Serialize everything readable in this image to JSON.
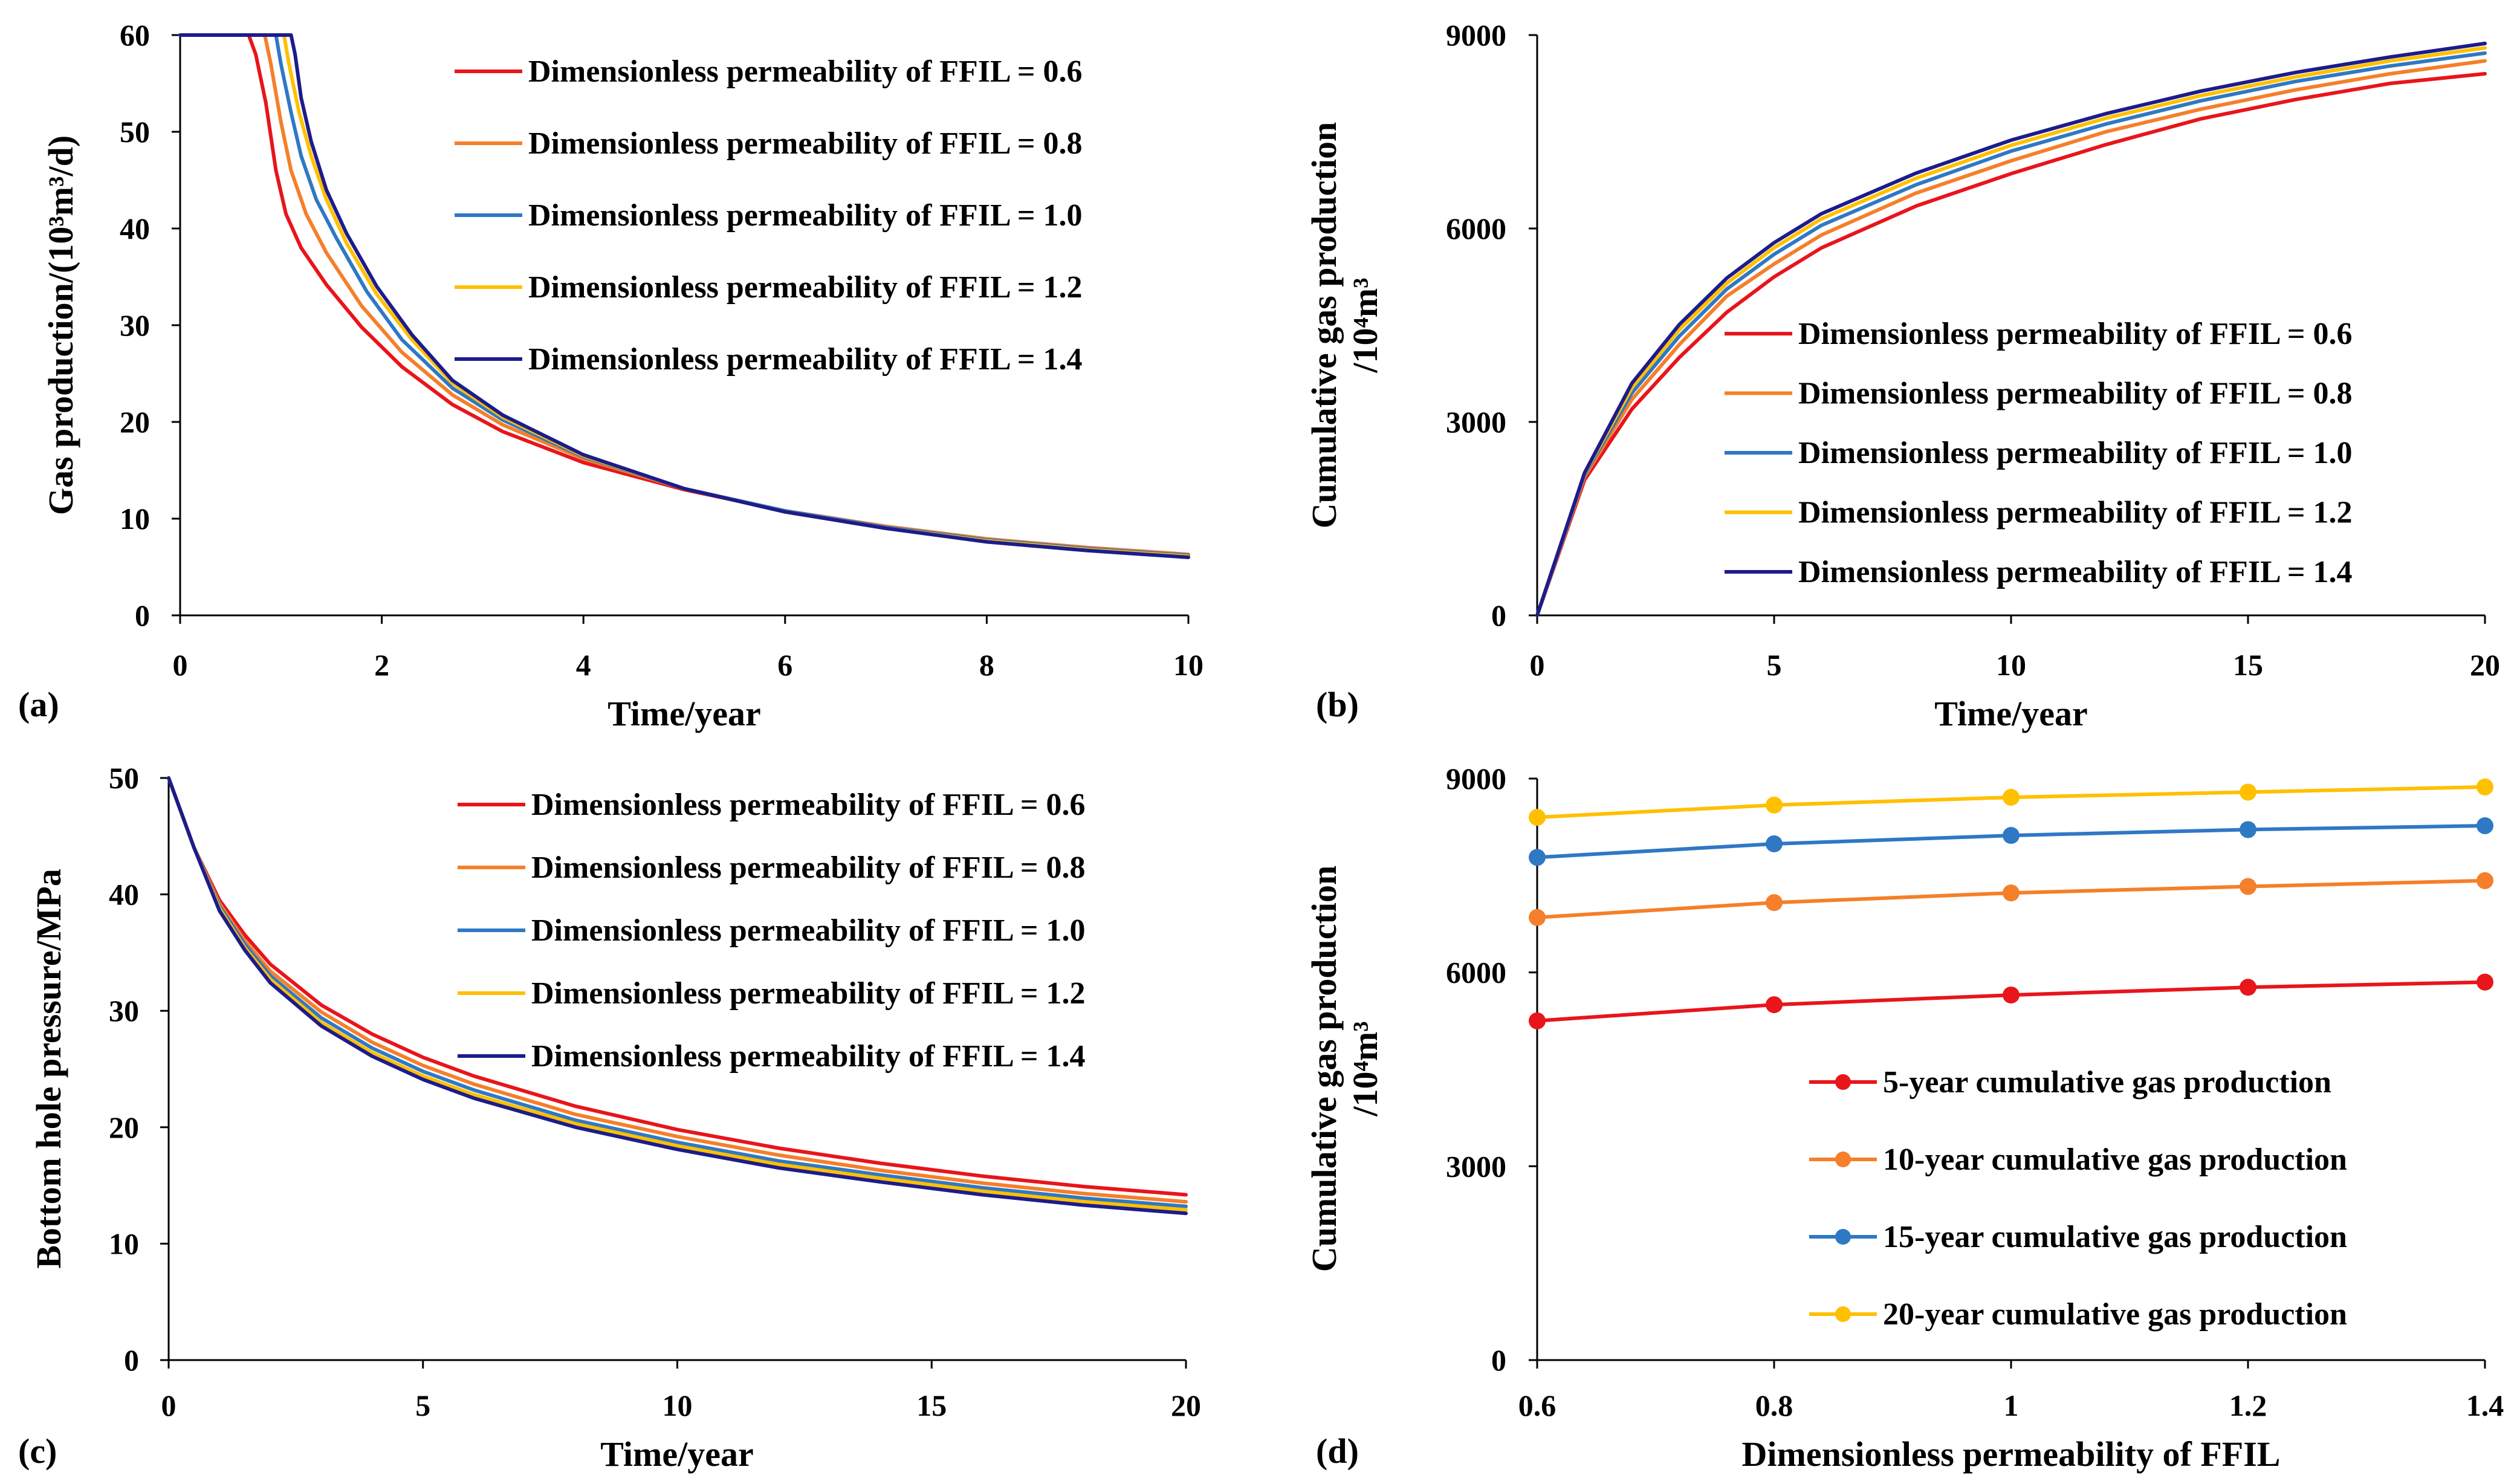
{
  "chart_data": [
    {
      "panel": "(a)",
      "type": "line",
      "xlabel": "Time/year",
      "ylabel": "Gas production/(10³m³/d)",
      "xlim": [
        0,
        10
      ],
      "ylim": [
        0,
        60
      ],
      "xticks": [
        0,
        2,
        4,
        6,
        8,
        10
      ],
      "yticks": [
        0,
        10,
        20,
        30,
        40,
        50,
        60
      ],
      "legend_position": "top-right",
      "series": [
        {
          "name": "Dimensionless permeability of FFIL = 0.6",
          "color": "#e8151b",
          "x": [
            0,
            0.68,
            0.75,
            0.85,
            0.95,
            1.05,
            1.2,
            1.45,
            1.8,
            2.2,
            2.7,
            3.2,
            4,
            5,
            6,
            7,
            8,
            9,
            10
          ],
          "y": [
            60,
            60,
            58,
            53,
            46,
            41.5,
            38,
            34.2,
            29.8,
            25.7,
            21.8,
            19,
            15.8,
            13,
            10.8,
            9.2,
            7.9,
            7,
            6.3
          ]
        },
        {
          "name": "Dimensionless permeability of FFIL = 0.8",
          "color": "#f57f2a",
          "x": [
            0,
            0.84,
            0.9,
            1.0,
            1.1,
            1.25,
            1.45,
            1.8,
            2.2,
            2.7,
            3.2,
            4,
            5,
            6,
            7,
            8,
            9,
            10
          ],
          "y": [
            60,
            60,
            57,
            51,
            46,
            41.5,
            37.5,
            32,
            27.2,
            22.8,
            19.7,
            16.2,
            13.1,
            10.8,
            9.2,
            7.9,
            7,
            6.3
          ]
        },
        {
          "name": "Dimensionless permeability of FFIL = 1.0",
          "color": "#2f78c4",
          "x": [
            0,
            0.95,
            1.0,
            1.1,
            1.2,
            1.35,
            1.55,
            1.85,
            2.2,
            2.7,
            3.2,
            4,
            5,
            6,
            7,
            8,
            9,
            10
          ],
          "y": [
            60,
            60,
            57,
            52,
            47.5,
            43,
            39,
            33.5,
            28.5,
            23.5,
            20.2,
            16.4,
            13.1,
            10.8,
            9.1,
            7.8,
            6.9,
            6.2
          ]
        },
        {
          "name": "Dimensionless permeability of FFIL = 1.2",
          "color": "#ffc000",
          "x": [
            0,
            1.03,
            1.08,
            1.18,
            1.3,
            1.45,
            1.65,
            1.95,
            2.3,
            2.7,
            3.2,
            4,
            5,
            6,
            7,
            8,
            9,
            10
          ],
          "y": [
            60,
            60,
            57,
            52,
            47.5,
            43,
            38.5,
            33.2,
            28.5,
            24,
            20.5,
            16.5,
            13.1,
            10.7,
            9,
            7.7,
            6.8,
            6.1
          ]
        },
        {
          "name": "Dimensionless permeability of FFIL = 1.4",
          "color": "#1c1c8c",
          "x": [
            0,
            1.1,
            1.14,
            1.2,
            1.3,
            1.45,
            1.65,
            1.95,
            2.3,
            2.7,
            3.2,
            4,
            5,
            6,
            7,
            8,
            9,
            10
          ],
          "y": [
            60,
            60,
            58,
            53.5,
            49,
            44,
            39.5,
            34,
            29,
            24.3,
            20.7,
            16.6,
            13.1,
            10.7,
            9,
            7.6,
            6.7,
            6
          ]
        }
      ]
    },
    {
      "panel": "(b)",
      "type": "line",
      "xlabel": "Time/year",
      "ylabel": "Cumulative gas production",
      "ylabel2": "/10⁴m³",
      "xlim": [
        0,
        20
      ],
      "ylim": [
        0,
        9000
      ],
      "xticks": [
        0,
        5,
        10,
        15,
        20
      ],
      "yticks": [
        0,
        3000,
        6000,
        9000
      ],
      "legend_position": "lower-right",
      "series": [
        {
          "name": "Dimensionless permeability of FFIL = 0.6",
          "color": "#e8151b",
          "x": [
            0,
            1,
            2,
            3,
            4,
            5,
            6,
            8,
            10,
            12,
            14,
            16,
            18,
            20
          ],
          "y": [
            0,
            2100,
            3200,
            4000,
            4700,
            5250,
            5700,
            6350,
            6850,
            7300,
            7700,
            8000,
            8250,
            8400
          ]
        },
        {
          "name": "Dimensionless permeability of FFIL = 0.8",
          "color": "#f57f2a",
          "x": [
            0,
            1,
            2,
            3,
            4,
            5,
            6,
            8,
            10,
            12,
            14,
            16,
            18,
            20
          ],
          "y": [
            0,
            2150,
            3350,
            4200,
            4950,
            5450,
            5900,
            6550,
            7050,
            7500,
            7850,
            8150,
            8400,
            8600
          ]
        },
        {
          "name": "Dimensionless permeability of FFIL = 1.0",
          "color": "#2f78c4",
          "x": [
            0,
            1,
            2,
            3,
            4,
            5,
            6,
            8,
            10,
            12,
            14,
            16,
            18,
            20
          ],
          "y": [
            0,
            2180,
            3450,
            4330,
            5060,
            5600,
            6050,
            6680,
            7200,
            7620,
            7980,
            8280,
            8520,
            8720
          ]
        },
        {
          "name": "Dimensionless permeability of FFIL = 1.2",
          "color": "#ffc000",
          "x": [
            0,
            1,
            2,
            3,
            4,
            5,
            6,
            8,
            10,
            12,
            14,
            16,
            18,
            20
          ],
          "y": [
            0,
            2200,
            3530,
            4430,
            5150,
            5700,
            6150,
            6780,
            7290,
            7710,
            8060,
            8350,
            8600,
            8800
          ]
        },
        {
          "name": "Dimensionless permeability of FFIL = 1.4",
          "color": "#1c1c8c",
          "x": [
            0,
            1,
            2,
            3,
            4,
            5,
            6,
            8,
            10,
            12,
            14,
            16,
            18,
            20
          ],
          "y": [
            0,
            2210,
            3600,
            4510,
            5230,
            5780,
            6230,
            6860,
            7370,
            7780,
            8130,
            8420,
            8660,
            8870
          ]
        }
      ]
    },
    {
      "panel": "(c)",
      "type": "line",
      "xlabel": "Time/year",
      "ylabel": "Bottom hole pressure/MPa",
      "xlim": [
        0,
        20
      ],
      "ylim": [
        0,
        50
      ],
      "xticks": [
        0,
        5,
        10,
        15,
        20
      ],
      "yticks": [
        0,
        10,
        20,
        30,
        40,
        50
      ],
      "legend_position": "top-right",
      "series": [
        {
          "name": "Dimensionless permeability of FFIL = 0.6",
          "color": "#e8151b",
          "x": [
            0,
            0.5,
            1,
            1.5,
            2,
            3,
            4,
            5,
            6,
            8,
            10,
            12,
            14,
            16,
            18,
            20
          ],
          "y": [
            50,
            44,
            39.5,
            36.5,
            34,
            30.5,
            28,
            26,
            24.4,
            21.8,
            19.8,
            18.2,
            16.9,
            15.8,
            14.9,
            14.2
          ]
        },
        {
          "name": "Dimensionless permeability of FFIL = 0.8",
          "color": "#f57f2a",
          "x": [
            0,
            0.5,
            1,
            1.5,
            2,
            3,
            4,
            5,
            6,
            8,
            10,
            12,
            14,
            16,
            18,
            20
          ],
          "y": [
            50,
            44,
            39.2,
            36,
            33.4,
            29.9,
            27.3,
            25.3,
            23.7,
            21.1,
            19.2,
            17.6,
            16.3,
            15.2,
            14.3,
            13.6
          ]
        },
        {
          "name": "Dimensionless permeability of FFIL = 1.0",
          "color": "#2f78c4",
          "x": [
            0,
            0.5,
            1,
            1.5,
            2,
            3,
            4,
            5,
            6,
            8,
            10,
            12,
            14,
            16,
            18,
            20
          ],
          "y": [
            50,
            44,
            39,
            35.7,
            33,
            29.4,
            26.8,
            24.8,
            23.2,
            20.6,
            18.7,
            17.1,
            15.9,
            14.8,
            13.9,
            13.2
          ]
        },
        {
          "name": "Dimensionless permeability of FFIL = 1.2",
          "color": "#ffc000",
          "x": [
            0,
            0.5,
            1,
            1.5,
            2,
            3,
            4,
            5,
            6,
            8,
            10,
            12,
            14,
            16,
            18,
            20
          ],
          "y": [
            50,
            44,
            38.8,
            35.4,
            32.7,
            29,
            26.4,
            24.4,
            22.8,
            20.3,
            18.4,
            16.8,
            15.6,
            14.5,
            13.6,
            12.9
          ]
        },
        {
          "name": "Dimensionless permeability of FFIL = 1.4",
          "color": "#1c1c8c",
          "x": [
            0,
            0.5,
            1,
            1.5,
            2,
            3,
            4,
            5,
            6,
            8,
            10,
            12,
            14,
            16,
            18,
            20
          ],
          "y": [
            50,
            44,
            38.6,
            35.2,
            32.4,
            28.7,
            26.1,
            24.1,
            22.5,
            20,
            18.1,
            16.5,
            15.3,
            14.2,
            13.3,
            12.6
          ]
        }
      ]
    },
    {
      "panel": "(d)",
      "type": "line",
      "markers": true,
      "xlabel": "Dimensionless permeability of FFIL",
      "ylabel": "Cumulative gas production",
      "ylabel2": "/10⁴m³",
      "xlim": [
        0.6,
        1.4
      ],
      "ylim": [
        0,
        9000
      ],
      "xticks": [
        0.6,
        0.8,
        1,
        1.2,
        1.4
      ],
      "yticks": [
        0,
        3000,
        6000,
        9000
      ],
      "legend_position": "lower-right",
      "series": [
        {
          "name": "5-year cumulative gas production",
          "color": "#e8151b",
          "x": [
            0.6,
            0.8,
            1,
            1.2,
            1.4
          ],
          "y": [
            5250,
            5500,
            5650,
            5770,
            5850
          ]
        },
        {
          "name": "10-year cumulative gas production",
          "color": "#f57f2a",
          "x": [
            0.6,
            0.8,
            1,
            1.2,
            1.4
          ],
          "y": [
            6850,
            7080,
            7230,
            7330,
            7420
          ]
        },
        {
          "name": "15-year cumulative gas production",
          "color": "#2f78c4",
          "x": [
            0.6,
            0.8,
            1,
            1.2,
            1.4
          ],
          "y": [
            7780,
            7990,
            8120,
            8210,
            8270
          ]
        },
        {
          "name": "20-year cumulative gas production",
          "color": "#ffc000",
          "x": [
            0.6,
            0.8,
            1,
            1.2,
            1.4
          ],
          "y": [
            8400,
            8590,
            8710,
            8790,
            8870
          ]
        }
      ]
    }
  ]
}
